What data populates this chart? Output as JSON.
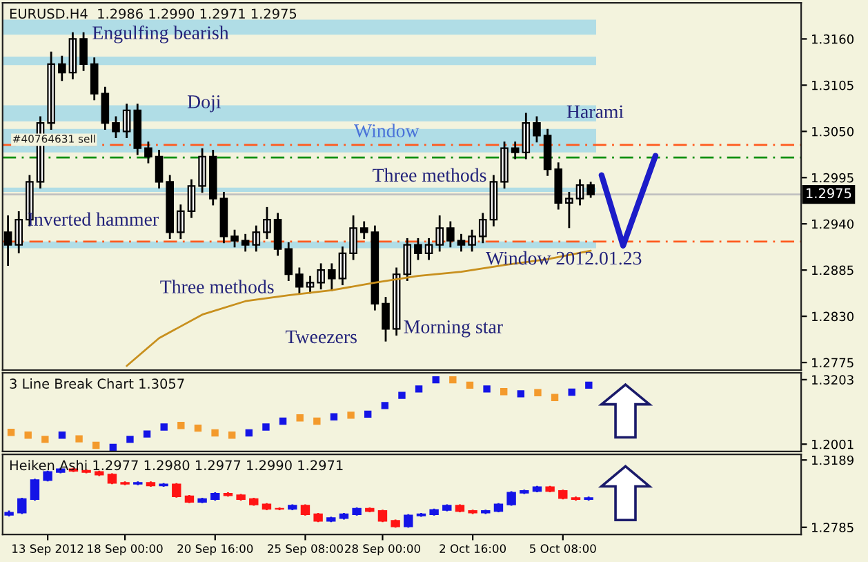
{
  "chart_data": [
    {
      "type": "candlestick",
      "title": "EURUSD.H4  1.2986 1.2990 1.2971 1.2975",
      "categories": [
        null,
        null,
        null,
        null,
        null,
        null,
        null,
        null,
        null,
        null,
        null,
        null,
        null,
        null,
        null,
        null,
        null,
        null,
        null,
        null,
        null,
        null,
        null,
        null,
        null,
        null,
        null,
        null,
        null,
        null,
        null,
        null,
        null,
        null,
        null,
        null,
        null,
        null,
        null,
        null,
        null,
        null,
        null,
        null,
        null,
        null,
        null,
        null,
        null,
        null,
        null,
        null,
        null,
        null,
        null,
        null,
        null,
        null,
        null,
        null,
        null,
        null,
        null,
        null,
        null,
        null,
        null,
        null,
        null,
        null,
        null,
        null,
        null,
        null
      ],
      "ohlc": [
        [
          1.293,
          1.295,
          1.289,
          1.2915
        ],
        [
          1.2915,
          1.2955,
          1.2905,
          1.2945
        ],
        [
          1.2945,
          1.2998,
          1.2937,
          1.299
        ],
        [
          1.299,
          1.3068,
          1.2982,
          1.306
        ],
        [
          1.306,
          1.3145,
          1.3052,
          1.313
        ],
        [
          1.313,
          1.314,
          1.311,
          1.312
        ],
        [
          1.312,
          1.3168,
          1.3112,
          1.316
        ],
        [
          1.316,
          1.3168,
          1.3122,
          1.313
        ],
        [
          1.313,
          1.3138,
          1.3087,
          1.3095
        ],
        [
          1.3095,
          1.3103,
          1.3052,
          1.306
        ],
        [
          1.306,
          1.3068,
          1.3042,
          1.305
        ],
        [
          1.305,
          1.3083,
          1.3042,
          1.3075
        ],
        [
          1.3075,
          1.3083,
          1.3022,
          1.303
        ],
        [
          1.303,
          1.3038,
          1.3012,
          1.302
        ],
        [
          1.302,
          1.3028,
          1.2982,
          1.299
        ],
        [
          1.299,
          1.2998,
          1.2922,
          1.293
        ],
        [
          1.293,
          1.2963,
          1.2922,
          1.2955
        ],
        [
          1.2955,
          1.2993,
          1.2947,
          1.2985
        ],
        [
          1.2985,
          1.303,
          1.2977,
          1.302
        ],
        [
          1.302,
          1.3028,
          1.2962,
          1.297
        ],
        [
          1.297,
          1.2978,
          1.2917,
          1.2925
        ],
        [
          1.2925,
          1.2933,
          1.2912,
          1.292
        ],
        [
          1.292,
          1.2928,
          1.2907,
          1.2915
        ],
        [
          1.2915,
          1.2938,
          1.2907,
          1.293
        ],
        [
          1.293,
          1.296,
          1.2922,
          1.2945
        ],
        [
          1.2945,
          1.2953,
          1.2902,
          1.291
        ],
        [
          1.291,
          1.2918,
          1.2872,
          1.288
        ],
        [
          1.288,
          1.2888,
          1.2857,
          1.2865
        ],
        [
          1.2865,
          1.2878,
          1.2857,
          1.287
        ],
        [
          1.287,
          1.2893,
          1.2862,
          1.2885
        ],
        [
          1.2885,
          1.2893,
          1.286,
          1.2875
        ],
        [
          1.2875,
          1.2913,
          1.2867,
          1.2905
        ],
        [
          1.2905,
          1.295,
          1.2897,
          1.2935
        ],
        [
          1.2935,
          1.2943,
          1.2922,
          1.293
        ],
        [
          1.293,
          1.2938,
          1.2837,
          1.2845
        ],
        [
          1.2845,
          1.2853,
          1.28,
          1.2815
        ],
        [
          1.2815,
          1.2888,
          1.2807,
          1.288
        ],
        [
          1.288,
          1.2923,
          1.2872,
          1.2915
        ],
        [
          1.2915,
          1.2923,
          1.2897,
          1.2905
        ],
        [
          1.2905,
          1.2923,
          1.2897,
          1.2915
        ],
        [
          1.2915,
          1.295,
          1.2907,
          1.2935
        ],
        [
          1.2935,
          1.2943,
          1.2912,
          1.292
        ],
        [
          1.292,
          1.2928,
          1.2907,
          1.2915
        ],
        [
          1.2915,
          1.2933,
          1.2907,
          1.2925
        ],
        [
          1.2925,
          1.2953,
          1.2917,
          1.2945
        ],
        [
          1.2945,
          1.2998,
          1.2937,
          1.299
        ],
        [
          1.299,
          1.3038,
          1.2982,
          1.303
        ],
        [
          1.303,
          1.3038,
          1.3017,
          1.3025
        ],
        [
          1.3025,
          1.3072,
          1.3017,
          1.306
        ],
        [
          1.306,
          1.3068,
          1.3037,
          1.3045
        ],
        [
          1.3045,
          1.3053,
          1.2997,
          1.3005
        ],
        [
          1.3005,
          1.3013,
          1.2957,
          1.2965
        ],
        [
          1.2965,
          1.2978,
          1.2935,
          1.297
        ],
        [
          1.297,
          1.2993,
          1.2962,
          1.2986
        ],
        [
          1.2986,
          1.299,
          1.2971,
          1.2975
        ],
        null,
        null,
        null,
        null,
        null,
        null,
        null,
        null,
        null,
        null,
        null,
        null,
        null,
        null,
        null,
        null,
        null,
        null,
        null
      ],
      "colors": [
        "#000000",
        "#ffffff",
        "#ffffff",
        "#ffffff",
        "#ffffff",
        "#000000",
        "#ffffff",
        "#000000",
        "#000000",
        "#000000",
        "#000000",
        "#ffffff",
        "#000000",
        "#000000",
        "#000000",
        "#000000",
        "#ffffff",
        "#ffffff",
        "#ffffff",
        "#000000",
        "#000000",
        "#000000",
        "#000000",
        "#ffffff",
        "#ffffff",
        "#000000",
        "#000000",
        "#000000",
        "#ffffff",
        "#ffffff",
        "#000000",
        "#ffffff",
        "#ffffff",
        "#000000",
        "#000000",
        "#000000",
        "#ffffff",
        "#ffffff",
        "#000000",
        "#ffffff",
        "#ffffff",
        "#000000",
        "#000000",
        "#ffffff",
        "#ffffff",
        "#ffffff",
        "#ffffff",
        "#000000",
        "#ffffff",
        "#000000",
        "#000000",
        "#000000",
        "#ffffff",
        "#ffffff",
        "#000000",
        null,
        null,
        null,
        null,
        null,
        null,
        null,
        null,
        null,
        null,
        null,
        null,
        null,
        null,
        null,
        null,
        null,
        null,
        null
      ],
      "series": [
        {
          "type": "line",
          "color": "#c8901e",
          "values": [
            null,
            null,
            null,
            null,
            null,
            null,
            null,
            null,
            null,
            null,
            null,
            1.2771,
            null,
            null,
            1.2804,
            null,
            null,
            null,
            1.2832,
            null,
            null,
            null,
            1.2848,
            null,
            null,
            null,
            1.2855,
            null,
            null,
            null,
            1.2861,
            null,
            null,
            null,
            1.287,
            null,
            null,
            null,
            1.2878,
            null,
            null,
            null,
            1.2883,
            null,
            null,
            null,
            1.2891,
            null,
            null,
            null,
            1.2898,
            null,
            null,
            null,
            1.2908,
            null,
            null,
            null,
            null,
            null,
            null,
            null,
            null,
            null,
            null,
            null,
            null,
            null,
            null,
            null,
            null,
            null,
            null,
            null
          ]
        },
        {
          "type": "line",
          "color": "#1c1cc8",
          "values": [
            null,
            null,
            null,
            null,
            null,
            null,
            null,
            null,
            null,
            null,
            null,
            null,
            null,
            null,
            null,
            null,
            null,
            null,
            null,
            null,
            null,
            null,
            null,
            null,
            null,
            null,
            null,
            null,
            null,
            null,
            null,
            null,
            null,
            null,
            null,
            null,
            null,
            null,
            null,
            null,
            null,
            null,
            null,
            null,
            null,
            null,
            null,
            null,
            null,
            null,
            null,
            null,
            null,
            null,
            null,
            1.2998,
            null,
            1.2914,
            null,
            null,
            1.3021,
            null,
            null,
            null,
            null,
            null,
            null,
            null,
            null,
            null,
            null,
            null,
            null,
            null
          ]
        }
      ],
      "bands": [
        {
          "axis": "y",
          "from": 1.3165,
          "to": 1.3183,
          "color": "#b0dde6"
        },
        {
          "axis": "y",
          "from": 1.3129,
          "to": 1.3139,
          "color": "#b0dde6"
        },
        {
          "axis": "y",
          "from": 1.3062,
          "to": 1.3081,
          "color": "#b0dde6"
        },
        {
          "axis": "y",
          "from": 1.3025,
          "to": 1.3053,
          "color": "#b0dde6"
        },
        {
          "axis": "y",
          "from": 1.2978,
          "to": 1.2983,
          "color": "#b0dde6"
        },
        {
          "axis": "y",
          "from": 1.2911,
          "to": 1.2919,
          "color": "#b0dde6"
        }
      ],
      "ref_lines": [
        {
          "axis": "y",
          "value": 1.3034,
          "label": "#40764631 sell",
          "color": "#ff5a1e",
          "line_style": "dashed"
        },
        {
          "axis": "y",
          "value": 1.3019,
          "color": "#109010",
          "line_style": "dashed"
        },
        {
          "axis": "y",
          "value": 1.2919,
          "color": "#ff5a1e",
          "line_style": "dashed"
        },
        {
          "axis": "y",
          "value": 1.2975,
          "label": "1.2975",
          "color": "#c0c0c0",
          "line_style": "solid"
        }
      ],
      "annotations": [
        "Engulfing bearish",
        "Doji",
        "Window",
        "Harami",
        "Three methods",
        "Inverted hammer",
        "Three methods",
        "Window 2012.01.23",
        "Tweezers",
        "Morning star"
      ],
      "ylim": [
        1.2766,
        1.3203
      ],
      "yticks": [
        {
          "value": 1.316,
          "label": "1.3160"
        },
        {
          "value": 1.3105,
          "label": "1.3105"
        },
        {
          "value": 1.305,
          "label": "1.3050"
        },
        {
          "value": 1.2995,
          "label": "1.2995"
        },
        {
          "value": 1.294,
          "label": "1.2940"
        },
        {
          "value": 1.2885,
          "label": "1.2885"
        },
        {
          "value": 1.283,
          "label": "1.2830"
        },
        {
          "value": 1.2775,
          "label": "1.2775"
        }
      ],
      "tick_labels": "y"
    },
    {
      "type": "scatter",
      "title": "3 Line Break Chart 1.3057",
      "marker": "square",
      "categories": [
        null,
        null,
        null,
        null,
        null,
        null,
        null,
        null,
        null,
        null,
        null,
        null,
        null,
        null,
        null,
        null,
        null,
        null,
        null,
        null,
        null,
        null,
        null,
        null,
        null,
        null,
        null,
        null,
        null,
        null,
        null,
        null,
        null,
        null,
        null,
        null,
        null,
        null,
        null,
        null,
        null,
        null,
        null,
        null,
        null,
        null,
        null
      ],
      "values": [
        1.222,
        1.217,
        1.209,
        1.217,
        1.21,
        1.198,
        1.194,
        1.209,
        1.219,
        1.232,
        1.235,
        1.23,
        1.221,
        1.217,
        1.221,
        1.232,
        1.243,
        1.249,
        1.243,
        1.251,
        1.254,
        1.256,
        1.272,
        1.291,
        1.303,
        1.32,
        1.32,
        1.31,
        1.303,
        1.298,
        1.294,
        1.296,
        1.287,
        1.297,
        1.31,
        null,
        null,
        null,
        null,
        null,
        null,
        null,
        null,
        null,
        null,
        null,
        null
      ],
      "colors": [
        "#f39a2c",
        "#f39a2c",
        "#f39a2c",
        "#1414e6",
        "#f39a2c",
        "#f39a2c",
        "#1414e6",
        "#1414e6",
        "#1414e6",
        "#1414e6",
        "#f39a2c",
        "#f39a2c",
        "#f39a2c",
        "#f39a2c",
        "#1414e6",
        "#1414e6",
        "#1414e6",
        "#f39a2c",
        "#f39a2c",
        "#1414e6",
        "#f39a2c",
        "#1414e6",
        "#1414e6",
        "#1414e6",
        "#1414e6",
        "#1414e6",
        "#f39a2c",
        "#f39a2c",
        "#1414e6",
        "#f39a2c",
        "#1414e6",
        "#f39a2c",
        "#f39a2c",
        "#1414e6",
        "#1414e6",
        null,
        null,
        null,
        null,
        null,
        null,
        null,
        null,
        null,
        null,
        null,
        null
      ],
      "ylim": [
        1.1864,
        1.333
      ],
      "yticks": [
        {
          "value": 1.3203,
          "label": "1.3203"
        },
        {
          "value": 1.2001,
          "label": "1.2001"
        }
      ],
      "tick_labels": "y"
    },
    {
      "type": "candlestick",
      "title": "Heiken Ashi 1.2977 1.2980 1.2977 1.2990 1.2971",
      "categories": [
        null,
        null,
        null,
        "13 Sep 2012",
        null,
        null,
        null,
        null,
        null,
        "18 Sep 00:00",
        null,
        null,
        null,
        null,
        null,
        null,
        "20 Sep 16:00",
        null,
        null,
        null,
        null,
        null,
        null,
        "25 Sep 08:00",
        null,
        null,
        null,
        null,
        null,
        "28 Sep 00:00",
        null,
        null,
        null,
        null,
        null,
        null,
        "2 Oct 16:00",
        null,
        null,
        null,
        null,
        null,
        null,
        "5 Oct 08:00",
        null,
        null,
        null,
        null,
        null,
        null,
        null,
        null,
        null,
        null,
        null,
        null,
        null,
        null,
        null,
        null,
        null,
        null
      ],
      "ohlc": [
        [
          1.286,
          1.2885,
          1.285,
          1.2873
        ],
        [
          1.2873,
          1.2962,
          1.2865,
          1.2954
        ],
        [
          1.2954,
          1.3076,
          1.2946,
          1.3068
        ],
        [
          1.3068,
          1.3125,
          1.306,
          1.3117
        ],
        [
          1.3117,
          1.3142,
          1.3109,
          1.3134
        ],
        [
          1.3134,
          1.3142,
          1.3116,
          1.3124
        ],
        [
          1.3124,
          1.3132,
          1.3109,
          1.3117
        ],
        [
          1.3117,
          1.3125,
          1.3093,
          1.3101
        ],
        [
          1.3101,
          1.3109,
          1.3044,
          1.3052
        ],
        [
          1.3052,
          1.306,
          1.3038,
          1.3046
        ],
        [
          1.3046,
          1.306,
          1.3038,
          1.3052
        ],
        [
          1.3052,
          1.306,
          1.3028,
          1.3036
        ],
        [
          1.3036,
          1.305,
          1.3028,
          1.3042
        ],
        [
          1.3042,
          1.305,
          1.2963,
          1.2971
        ],
        [
          1.2971,
          1.2979,
          1.293,
          1.2938
        ],
        [
          1.2938,
          1.2962,
          1.293,
          1.2954
        ],
        [
          1.2954,
          1.2995,
          1.2946,
          1.2987
        ],
        [
          1.2987,
          1.2995,
          1.2969,
          1.2977
        ],
        [
          1.2977,
          1.2985,
          1.2946,
          1.2954
        ],
        [
          1.2954,
          1.2962,
          1.2914,
          1.2922
        ],
        [
          1.2922,
          1.293,
          1.2888,
          1.2896
        ],
        [
          1.2896,
          1.2904,
          1.2888,
          1.2896
        ],
        [
          1.2896,
          1.2923,
          1.2888,
          1.2915
        ],
        [
          1.2915,
          1.2923,
          1.2855,
          1.2863
        ],
        [
          1.2863,
          1.2871,
          1.2816,
          1.2824
        ],
        [
          1.2824,
          1.2848,
          1.2816,
          1.284
        ],
        [
          1.284,
          1.2871,
          1.2832,
          1.2863
        ],
        [
          1.2863,
          1.2904,
          1.2855,
          1.2896
        ],
        [
          1.2896,
          1.2904,
          1.2875,
          1.2883
        ],
        [
          1.2883,
          1.2891,
          1.2816,
          1.2824
        ],
        [
          1.2824,
          1.2832,
          1.2783,
          1.2791
        ],
        [
          1.2791,
          1.2864,
          1.2783,
          1.2856
        ],
        [
          1.2856,
          1.2871,
          1.2848,
          1.2863
        ],
        [
          1.2863,
          1.2897,
          1.2855,
          1.2889
        ],
        [
          1.2889,
          1.2923,
          1.2881,
          1.2915
        ],
        [
          1.2915,
          1.2923,
          1.2875,
          1.2883
        ],
        [
          1.2883,
          1.2891,
          1.2865,
          1.2873
        ],
        [
          1.2873,
          1.2891,
          1.2865,
          1.2883
        ],
        [
          1.2883,
          1.293,
          1.2875,
          1.2922
        ],
        [
          1.2922,
          1.3001,
          1.2914,
          1.2993
        ],
        [
          1.2993,
          1.3011,
          1.2985,
          1.3003
        ],
        [
          1.3003,
          1.3034,
          1.2995,
          1.3026
        ],
        [
          1.3026,
          1.3034,
          1.2995,
          1.3003
        ],
        [
          1.3003,
          1.3011,
          1.2953,
          1.2961
        ],
        [
          1.2961,
          1.2969,
          1.2946,
          1.2954
        ],
        [
          1.2954,
          1.2969,
          1.2946,
          1.2961
        ],
        null,
        null,
        null,
        null,
        null,
        null,
        null,
        null,
        null,
        null,
        null,
        null,
        null,
        null,
        null,
        null
      ],
      "colors": [
        "#1414e6",
        "#1414e6",
        "#1414e6",
        "#1414e6",
        "#1414e6",
        "#ff1414",
        "#ff1414",
        "#ff1414",
        "#ff1414",
        "#ff1414",
        "#1414e6",
        "#ff1414",
        "#1414e6",
        "#ff1414",
        "#ff1414",
        "#1414e6",
        "#1414e6",
        "#ff1414",
        "#ff1414",
        "#ff1414",
        "#ff1414",
        "#ff1414",
        "#1414e6",
        "#ff1414",
        "#ff1414",
        "#1414e6",
        "#1414e6",
        "#1414e6",
        "#ff1414",
        "#ff1414",
        "#ff1414",
        "#1414e6",
        "#1414e6",
        "#1414e6",
        "#1414e6",
        "#ff1414",
        "#ff1414",
        "#1414e6",
        "#1414e6",
        "#1414e6",
        "#1414e6",
        "#1414e6",
        "#ff1414",
        "#ff1414",
        "#ff1414",
        "#1414e6",
        null,
        null,
        null,
        null,
        null,
        null,
        null,
        null,
        null,
        null,
        null,
        null,
        null,
        null,
        null,
        null
      ],
      "ylim": [
        1.2742,
        1.3223
      ],
      "yticks": [
        {
          "value": 1.3189,
          "label": "1.3189"
        },
        {
          "value": 1.2785,
          "label": "1.2785"
        }
      ]
    }
  ]
}
